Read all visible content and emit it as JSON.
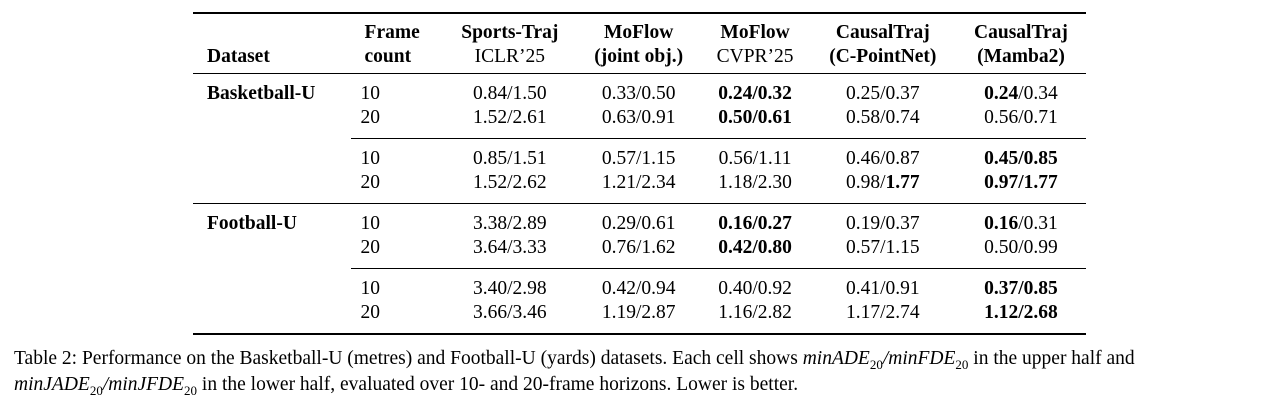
{
  "table": {
    "header": [
      [
        {
          "t": "Dataset",
          "b": true
        }
      ],
      [
        {
          "t": "Frame",
          "b": true
        },
        {
          "t": "count",
          "b": true
        }
      ],
      [
        {
          "t": "Sports-Traj",
          "b": true
        },
        {
          "t": "ICLR’25"
        }
      ],
      [
        {
          "t": "MoFlow",
          "b": true
        },
        {
          "t": "(joint obj.)",
          "b": true
        }
      ],
      [
        {
          "t": "MoFlow",
          "b": true
        },
        {
          "t": "CVPR’25"
        }
      ],
      [
        {
          "t": "CausalTraj",
          "b": true
        },
        {
          "t": "(C-PointNet)",
          "b": true
        }
      ],
      [
        {
          "t": "CausalTraj",
          "b": true
        },
        {
          "t": "(Mamba2)",
          "b": true
        }
      ]
    ],
    "groups": [
      {
        "dataset": "Basketball-U",
        "halves": [
          [
            {
              "frames": "10",
              "cells": [
                [
                  {
                    "t": "0.84/1.50"
                  }
                ],
                [
                  {
                    "t": "0.33/0.50"
                  }
                ],
                [
                  {
                    "t": "0.24/0.32",
                    "b": true
                  }
                ],
                [
                  {
                    "t": "0.25/0.37"
                  }
                ],
                [
                  {
                    "t": "0.24",
                    "b": true
                  },
                  {
                    "t": "/0.34"
                  }
                ]
              ]
            },
            {
              "frames": "20",
              "cells": [
                [
                  {
                    "t": "1.52/2.61"
                  }
                ],
                [
                  {
                    "t": "0.63/0.91"
                  }
                ],
                [
                  {
                    "t": "0.50/0.61",
                    "b": true
                  }
                ],
                [
                  {
                    "t": "0.58/0.74"
                  }
                ],
                [
                  {
                    "t": "0.56/0.71"
                  }
                ]
              ]
            }
          ],
          [
            {
              "frames": "10",
              "cells": [
                [
                  {
                    "t": "0.85/1.51"
                  }
                ],
                [
                  {
                    "t": "0.57/1.15"
                  }
                ],
                [
                  {
                    "t": "0.56/1.11"
                  }
                ],
                [
                  {
                    "t": "0.46/0.87"
                  }
                ],
                [
                  {
                    "t": "0.45/0.85",
                    "b": true
                  }
                ]
              ]
            },
            {
              "frames": "20",
              "cells": [
                [
                  {
                    "t": "1.52/2.62"
                  }
                ],
                [
                  {
                    "t": "1.21/2.34"
                  }
                ],
                [
                  {
                    "t": "1.18/2.30"
                  }
                ],
                [
                  {
                    "t": "0.98/"
                  },
                  {
                    "t": "1.77",
                    "b": true
                  }
                ],
                [
                  {
                    "t": "0.97/1.77",
                    "b": true
                  }
                ]
              ]
            }
          ]
        ]
      },
      {
        "dataset": "Football-U",
        "halves": [
          [
            {
              "frames": "10",
              "cells": [
                [
                  {
                    "t": "3.38/2.89"
                  }
                ],
                [
                  {
                    "t": "0.29/0.61"
                  }
                ],
                [
                  {
                    "t": "0.16/0.27",
                    "b": true
                  }
                ],
                [
                  {
                    "t": "0.19/0.37"
                  }
                ],
                [
                  {
                    "t": "0.16",
                    "b": true
                  },
                  {
                    "t": "/0.31"
                  }
                ]
              ]
            },
            {
              "frames": "20",
              "cells": [
                [
                  {
                    "t": "3.64/3.33"
                  }
                ],
                [
                  {
                    "t": "0.76/1.62"
                  }
                ],
                [
                  {
                    "t": "0.42/0.80",
                    "b": true
                  }
                ],
                [
                  {
                    "t": "0.57/1.15"
                  }
                ],
                [
                  {
                    "t": "0.50/0.99"
                  }
                ]
              ]
            }
          ],
          [
            {
              "frames": "10",
              "cells": [
                [
                  {
                    "t": "3.40/2.98"
                  }
                ],
                [
                  {
                    "t": "0.42/0.94"
                  }
                ],
                [
                  {
                    "t": "0.40/0.92"
                  }
                ],
                [
                  {
                    "t": "0.41/0.91"
                  }
                ],
                [
                  {
                    "t": "0.37/0.85",
                    "b": true
                  }
                ]
              ]
            },
            {
              "frames": "20",
              "cells": [
                [
                  {
                    "t": "3.66/3.46"
                  }
                ],
                [
                  {
                    "t": "1.19/2.87"
                  }
                ],
                [
                  {
                    "t": "1.16/2.82"
                  }
                ],
                [
                  {
                    "t": "1.17/2.74"
                  }
                ],
                [
                  {
                    "t": "1.12/2.68",
                    "b": true
                  }
                ]
              ]
            }
          ]
        ]
      }
    ]
  },
  "caption": [
    {
      "t": "Table 2: Performance on the Basketball-U (metres) and Football-U (yards) datasets. Each cell shows "
    },
    {
      "t": "minADE",
      "i": true
    },
    {
      "t": "20",
      "sub": true
    },
    {
      "t": "/",
      "i": true
    },
    {
      "t": "minFDE",
      "i": true
    },
    {
      "t": "20",
      "sub": true
    },
    {
      "t": " in the upper half and "
    },
    {
      "t": "minJADE",
      "i": true
    },
    {
      "t": "20",
      "sub": true
    },
    {
      "t": "/",
      "i": true
    },
    {
      "t": "minJFDE",
      "i": true
    },
    {
      "t": "20",
      "sub": true
    },
    {
      "t": " in the lower half, evaluated over 10- and 20-frame horizons. Lower is better."
    }
  ]
}
